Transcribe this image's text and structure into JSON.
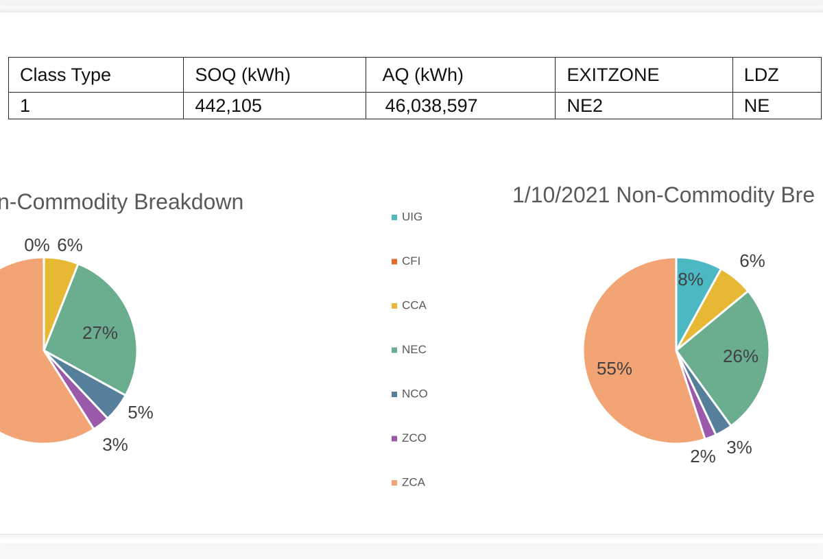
{
  "table": {
    "headers": [
      "Class Type",
      "SOQ (kWh)",
      "AQ (kWh)",
      "EXITZONE",
      "LDZ"
    ],
    "rows": [
      [
        "1",
        "442,105",
        "46,038,597",
        "NE2",
        "NE"
      ]
    ]
  },
  "chart_data": [
    {
      "type": "pie",
      "title": "n-Commodity Breakdown",
      "slices": [
        {
          "name": "UIG",
          "value": 0,
          "label": "0%",
          "color": "#4bb8c4"
        },
        {
          "name": "CFI",
          "value": 0,
          "label": "",
          "color": "#e8672b"
        },
        {
          "name": "CCA",
          "value": 6,
          "label": "6%",
          "color": "#e6b833"
        },
        {
          "name": "NEC",
          "value": 27,
          "label": "27%",
          "color": "#6aad8f"
        },
        {
          "name": "NCO",
          "value": 5,
          "label": "5%",
          "color": "#567f9c"
        },
        {
          "name": "ZCO",
          "value": 3,
          "label": "3%",
          "color": "#9b59a9"
        },
        {
          "name": "ZCA",
          "value": 59,
          "label": "",
          "color": "#f2a474"
        }
      ]
    },
    {
      "type": "pie",
      "title": "1/10/2021 Non-Commodity Bre",
      "slices": [
        {
          "name": "UIG",
          "value": 8,
          "label": "8%",
          "color": "#4bb8c4"
        },
        {
          "name": "CFI",
          "value": 0,
          "label": "",
          "color": "#e8672b"
        },
        {
          "name": "CCA",
          "value": 6,
          "label": "6%",
          "color": "#e6b833"
        },
        {
          "name": "NEC",
          "value": 26,
          "label": "26%",
          "color": "#6aad8f"
        },
        {
          "name": "NCO",
          "value": 3,
          "label": "3%",
          "color": "#567f9c"
        },
        {
          "name": "ZCO",
          "value": 2,
          "label": "2%",
          "color": "#9b59a9"
        },
        {
          "name": "ZCA",
          "value": 55,
          "label": "55%",
          "color": "#f2a474"
        }
      ]
    }
  ],
  "legend": [
    {
      "name": "UIG",
      "color": "#4bb8c4"
    },
    {
      "name": "CFI",
      "color": "#e8672b"
    },
    {
      "name": "CCA",
      "color": "#e6b833"
    },
    {
      "name": "NEC",
      "color": "#6aad8f"
    },
    {
      "name": "NCO",
      "color": "#567f9c"
    },
    {
      "name": "ZCO",
      "color": "#9b59a9"
    },
    {
      "name": "ZCA",
      "color": "#f2a474"
    }
  ]
}
